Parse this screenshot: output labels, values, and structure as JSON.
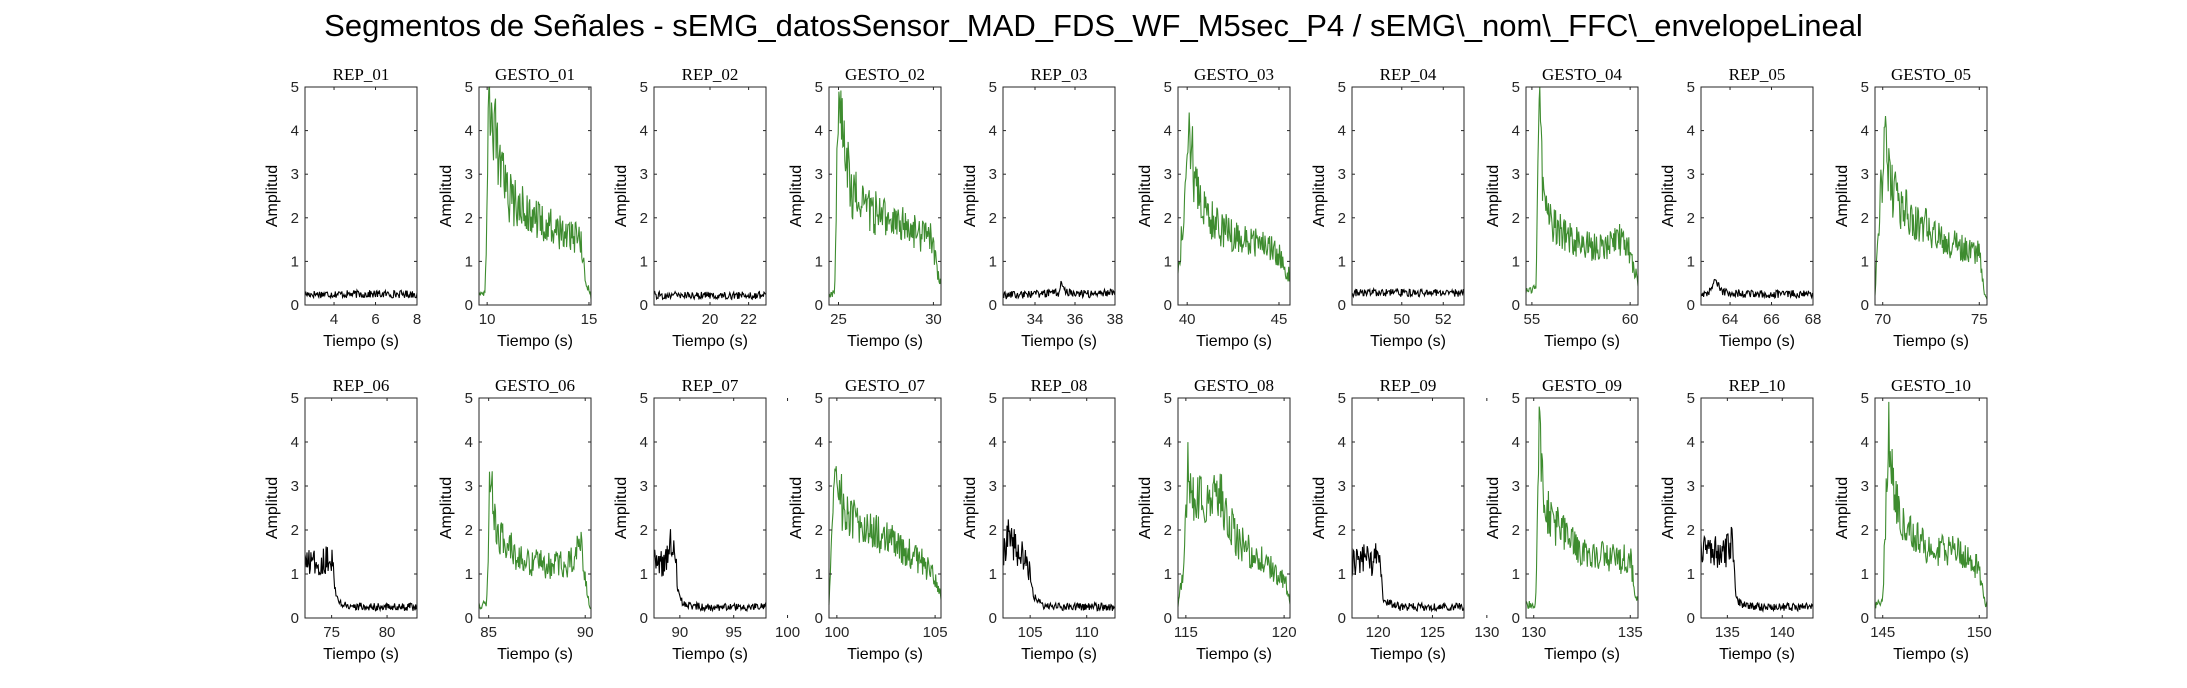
{
  "figure": {
    "title": "Segmentos de Señales - sEMG_datosSensor_MAD_FDS_WF_M5sec_P4 / sEMG\\_nom\\_FFC\\_envelopeLineal"
  },
  "colors": {
    "rep": "#000000",
    "gesto": "#3e8c2f",
    "axis": "#262626"
  },
  "chart_data": [
    {
      "type": "line",
      "title": "REP_01",
      "xlabel": "Tiempo (s)",
      "ylabel": "Amplitud",
      "xlim": [
        2.6,
        8.0
      ],
      "ylim": [
        0,
        5
      ],
      "xticks": [
        4,
        6,
        8
      ],
      "yticks": [
        0,
        1,
        2,
        3,
        4,
        5
      ],
      "series": [
        {
          "kind": "rep",
          "x": [
            2.6,
            8.0
          ],
          "values": [
            0.25,
            0.25
          ]
        }
      ]
    },
    {
      "type": "line",
      "title": "GESTO_01",
      "xlabel": "Tiempo (s)",
      "ylabel": "Amplitud",
      "xlim": [
        9.6,
        15.1
      ],
      "ylim": [
        0,
        5
      ],
      "xticks": [
        10,
        15
      ],
      "yticks": [
        0,
        1,
        2,
        3,
        4,
        5
      ],
      "series": [
        {
          "kind": "gesto",
          "x": [
            9.6,
            9.9,
            10.1,
            10.3,
            10.6,
            11.0,
            12.0,
            13.0,
            14.0,
            14.6,
            14.8,
            15.1
          ],
          "values": [
            0.3,
            0.3,
            4.7,
            4.3,
            3.2,
            2.5,
            2.1,
            1.8,
            1.6,
            1.5,
            0.6,
            0.2
          ]
        }
      ]
    },
    {
      "type": "line",
      "title": "REP_02",
      "xlabel": "Tiempo (s)",
      "ylabel": "Amplitud",
      "xlim": [
        17.1,
        22.9
      ],
      "ylim": [
        0,
        5
      ],
      "xticks": [
        20,
        22
      ],
      "yticks": [
        0,
        1,
        2,
        3,
        4,
        5
      ],
      "series": [
        {
          "kind": "rep",
          "x": [
            17.1,
            22.9
          ],
          "values": [
            0.22,
            0.22
          ]
        }
      ]
    },
    {
      "type": "line",
      "title": "GESTO_02",
      "xlabel": "Tiempo (s)",
      "ylabel": "Amplitud",
      "xlim": [
        24.5,
        30.4
      ],
      "ylim": [
        0,
        5
      ],
      "xticks": [
        25,
        30
      ],
      "yticks": [
        0,
        1,
        2,
        3,
        4,
        5
      ],
      "series": [
        {
          "kind": "gesto",
          "x": [
            24.5,
            24.8,
            25.0,
            25.3,
            25.7,
            26.2,
            27.0,
            28.0,
            29.0,
            29.9,
            30.3
          ],
          "values": [
            0.2,
            0.3,
            4.9,
            3.5,
            2.6,
            2.3,
            2.1,
            1.9,
            1.7,
            1.5,
            0.6
          ]
        }
      ]
    },
    {
      "type": "line",
      "title": "REP_03",
      "xlabel": "Tiempo (s)",
      "ylabel": "Amplitud",
      "xlim": [
        32.4,
        38.0
      ],
      "ylim": [
        0,
        5
      ],
      "xticks": [
        34,
        36,
        38
      ],
      "yticks": [
        0,
        1,
        2,
        3,
        4,
        5
      ],
      "series": [
        {
          "kind": "rep",
          "x": [
            32.4,
            34.0,
            35.2,
            35.3,
            35.5,
            36.5,
            38.0
          ],
          "values": [
            0.22,
            0.25,
            0.28,
            0.5,
            0.3,
            0.25,
            0.3
          ]
        }
      ]
    },
    {
      "type": "line",
      "title": "GESTO_03",
      "xlabel": "Tiempo (s)",
      "ylabel": "Amplitud",
      "xlim": [
        39.5,
        45.6
      ],
      "ylim": [
        0,
        5
      ],
      "xticks": [
        40,
        45
      ],
      "yticks": [
        0,
        1,
        2,
        3,
        4,
        5
      ],
      "series": [
        {
          "kind": "gesto",
          "x": [
            39.5,
            39.8,
            40.1,
            40.4,
            40.8,
            41.3,
            42.0,
            43.0,
            44.0,
            45.0,
            45.5
          ],
          "values": [
            0.7,
            2.0,
            4.4,
            2.8,
            2.3,
            2.0,
            1.7,
            1.5,
            1.4,
            1.2,
            0.7
          ]
        }
      ]
    },
    {
      "type": "line",
      "title": "REP_04",
      "xlabel": "Tiempo (s)",
      "ylabel": "Amplitud",
      "xlim": [
        47.6,
        53.0
      ],
      "ylim": [
        0,
        5
      ],
      "xticks": [
        50,
        52
      ],
      "yticks": [
        0,
        1,
        2,
        3,
        4,
        5
      ],
      "series": [
        {
          "kind": "rep",
          "x": [
            47.6,
            53.0
          ],
          "values": [
            0.28,
            0.28
          ]
        }
      ]
    },
    {
      "type": "line",
      "title": "GESTO_04",
      "xlabel": "Tiempo (s)",
      "ylabel": "Amplitud",
      "xlim": [
        54.7,
        60.4
      ],
      "ylim": [
        0,
        5
      ],
      "xticks": [
        55,
        60
      ],
      "yticks": [
        0,
        1,
        2,
        3,
        4,
        5
      ],
      "series": [
        {
          "kind": "gesto",
          "x": [
            54.7,
            55.2,
            55.4,
            55.6,
            56.0,
            56.6,
            57.5,
            58.5,
            59.5,
            60.0,
            60.4
          ],
          "values": [
            0.3,
            0.4,
            4.9,
            2.2,
            1.9,
            1.6,
            1.4,
            1.3,
            1.5,
            1.2,
            0.5
          ]
        }
      ]
    },
    {
      "type": "line",
      "title": "REP_05",
      "xlabel": "Tiempo (s)",
      "ylabel": "Amplitud",
      "xlim": [
        62.6,
        68.0
      ],
      "ylim": [
        0,
        5
      ],
      "xticks": [
        64,
        66,
        68
      ],
      "yticks": [
        0,
        1,
        2,
        3,
        4,
        5
      ],
      "series": [
        {
          "kind": "rep",
          "x": [
            62.6,
            63.0,
            63.3,
            63.6,
            65.0,
            68.0
          ],
          "values": [
            0.25,
            0.3,
            0.55,
            0.3,
            0.25,
            0.25
          ]
        }
      ]
    },
    {
      "type": "line",
      "title": "GESTO_05",
      "xlabel": "Tiempo (s)",
      "ylabel": "Amplitud",
      "xlim": [
        69.6,
        75.4
      ],
      "ylim": [
        0,
        5
      ],
      "xticks": [
        70,
        75
      ],
      "yticks": [
        0,
        1,
        2,
        3,
        4,
        5
      ],
      "series": [
        {
          "kind": "gesto",
          "x": [
            69.6,
            69.9,
            70.1,
            70.4,
            70.9,
            71.5,
            72.5,
            73.5,
            74.5,
            75.0,
            75.3
          ],
          "values": [
            0.3,
            2.5,
            3.7,
            2.7,
            2.3,
            2.0,
            1.7,
            1.4,
            1.3,
            1.2,
            0.2
          ]
        }
      ]
    },
    {
      "type": "line",
      "title": "REP_06",
      "xlabel": "Tiempo (s)",
      "ylabel": "Amplitud",
      "xlim": [
        72.6,
        82.7
      ],
      "ylim": [
        0,
        5
      ],
      "xticks": [
        75,
        80
      ],
      "yticks": [
        0,
        1,
        2,
        3,
        4,
        5
      ],
      "series": [
        {
          "kind": "rep",
          "x": [
            72.6,
            74.0,
            75.0,
            75.4,
            76.0,
            78.0,
            82.7
          ],
          "values": [
            1.2,
            1.3,
            1.4,
            0.5,
            0.3,
            0.25,
            0.25
          ]
        }
      ]
    },
    {
      "type": "line",
      "title": "GESTO_06",
      "xlabel": "Tiempo (s)",
      "ylabel": "Amplitud",
      "xlim": [
        84.5,
        90.3
      ],
      "ylim": [
        0,
        5
      ],
      "xticks": [
        85,
        90
      ],
      "yticks": [
        0,
        1,
        2,
        3,
        4,
        5
      ],
      "series": [
        {
          "kind": "gesto",
          "x": [
            84.5,
            84.9,
            85.1,
            85.3,
            85.7,
            86.3,
            87.0,
            88.0,
            89.0,
            89.8,
            90.2
          ],
          "values": [
            0.3,
            0.3,
            3.9,
            2.2,
            1.8,
            1.5,
            1.3,
            1.2,
            1.2,
            1.6,
            0.3
          ]
        }
      ]
    },
    {
      "type": "line",
      "title": "REP_07",
      "xlabel": "Tiempo (s)",
      "ylabel": "Amplitud",
      "xlim": [
        87.6,
        98.0
      ],
      "ylim": [
        0,
        5
      ],
      "xticks": [
        90,
        95,
        100
      ],
      "yticks": [
        0,
        1,
        2,
        3,
        4,
        5
      ],
      "series": [
        {
          "kind": "rep",
          "x": [
            87.6,
            88.5,
            89.5,
            89.8,
            90.3,
            92.0,
            98.0
          ],
          "values": [
            1.3,
            1.2,
            1.9,
            0.6,
            0.3,
            0.25,
            0.25
          ]
        }
      ]
    },
    {
      "type": "line",
      "title": "GESTO_07",
      "xlabel": "Tiempo (s)",
      "ylabel": "Amplitud",
      "xlim": [
        99.6,
        105.3
      ],
      "ylim": [
        0,
        5
      ],
      "xticks": [
        100,
        105
      ],
      "yticks": [
        0,
        1,
        2,
        3,
        4,
        5
      ],
      "series": [
        {
          "kind": "gesto",
          "x": [
            99.6,
            99.8,
            100.0,
            100.3,
            100.8,
            101.5,
            102.5,
            103.5,
            104.5,
            105.0,
            105.3
          ],
          "values": [
            0.3,
            2.8,
            3.4,
            2.5,
            2.2,
            2.0,
            1.8,
            1.5,
            1.2,
            0.9,
            0.5
          ]
        }
      ]
    },
    {
      "type": "line",
      "title": "REP_08",
      "xlabel": "Tiempo (s)",
      "ylabel": "Amplitud",
      "xlim": [
        102.6,
        112.5
      ],
      "ylim": [
        0,
        5
      ],
      "xticks": [
        105,
        110
      ],
      "yticks": [
        0,
        1,
        2,
        3,
        4,
        5
      ],
      "series": [
        {
          "kind": "rep",
          "x": [
            102.6,
            103.2,
            104.0,
            104.8,
            105.3,
            106.0,
            108.0,
            112.5
          ],
          "values": [
            1.5,
            1.9,
            1.5,
            1.2,
            0.5,
            0.3,
            0.25,
            0.25
          ]
        }
      ]
    },
    {
      "type": "line",
      "title": "GESTO_08",
      "xlabel": "Tiempo (s)",
      "ylabel": "Amplitud",
      "xlim": [
        114.6,
        120.3
      ],
      "ylim": [
        0,
        5
      ],
      "xticks": [
        115,
        120
      ],
      "yticks": [
        0,
        1,
        2,
        3,
        4,
        5
      ],
      "series": [
        {
          "kind": "gesto",
          "x": [
            114.6,
            114.9,
            115.1,
            115.4,
            116.0,
            116.8,
            117.5,
            118.5,
            119.5,
            120.0,
            120.3
          ],
          "values": [
            0.3,
            1.2,
            3.3,
            2.7,
            2.6,
            2.8,
            1.8,
            1.4,
            1.1,
            0.9,
            0.4
          ]
        }
      ]
    },
    {
      "type": "line",
      "title": "REP_09",
      "xlabel": "Tiempo (s)",
      "ylabel": "Amplitud",
      "xlim": [
        117.6,
        127.9
      ],
      "ylim": [
        0,
        5
      ],
      "xticks": [
        120,
        125,
        130
      ],
      "yticks": [
        0,
        1,
        2,
        3,
        4,
        5
      ],
      "series": [
        {
          "kind": "rep",
          "x": [
            117.6,
            118.5,
            119.5,
            120.0,
            120.5,
            122.0,
            127.9
          ],
          "values": [
            1.2,
            1.4,
            1.2,
            1.5,
            0.4,
            0.25,
            0.25
          ]
        }
      ]
    },
    {
      "type": "line",
      "title": "GESTO_09",
      "xlabel": "Tiempo (s)",
      "ylabel": "Amplitud",
      "xlim": [
        129.6,
        135.4
      ],
      "ylim": [
        0,
        5
      ],
      "xticks": [
        130,
        135
      ],
      "yticks": [
        0,
        1,
        2,
        3,
        4,
        5
      ],
      "series": [
        {
          "kind": "gesto",
          "x": [
            129.6,
            130.1,
            130.3,
            130.5,
            131.0,
            131.7,
            132.5,
            133.5,
            134.5,
            135.0,
            135.3
          ],
          "values": [
            0.3,
            0.3,
            4.5,
            2.6,
            2.2,
            1.8,
            1.5,
            1.4,
            1.3,
            1.4,
            0.4
          ]
        }
      ]
    },
    {
      "type": "line",
      "title": "REP_10",
      "xlabel": "Tiempo (s)",
      "ylabel": "Amplitud",
      "xlim": [
        132.6,
        142.8
      ],
      "ylim": [
        0,
        5
      ],
      "xticks": [
        135,
        140
      ],
      "yticks": [
        0,
        1,
        2,
        3,
        4,
        5
      ],
      "series": [
        {
          "kind": "rep",
          "x": [
            132.6,
            133.5,
            134.5,
            135.5,
            135.8,
            136.5,
            138.0,
            142.8
          ],
          "values": [
            1.5,
            1.6,
            1.4,
            1.7,
            0.4,
            0.3,
            0.25,
            0.25
          ]
        }
      ]
    },
    {
      "type": "line",
      "title": "GESTO_10",
      "xlabel": "Tiempo (s)",
      "ylabel": "Amplitud",
      "xlim": [
        144.6,
        150.4
      ],
      "ylim": [
        0,
        5
      ],
      "xticks": [
        145,
        150
      ],
      "yticks": [
        0,
        1,
        2,
        3,
        4,
        5
      ],
      "series": [
        {
          "kind": "gesto",
          "x": [
            144.6,
            145.0,
            145.3,
            145.6,
            146.0,
            146.7,
            147.5,
            148.5,
            149.5,
            150.0,
            150.3
          ],
          "values": [
            0.3,
            0.4,
            4.3,
            2.7,
            2.2,
            1.8,
            1.6,
            1.5,
            1.4,
            1.1,
            0.3
          ]
        }
      ]
    }
  ]
}
